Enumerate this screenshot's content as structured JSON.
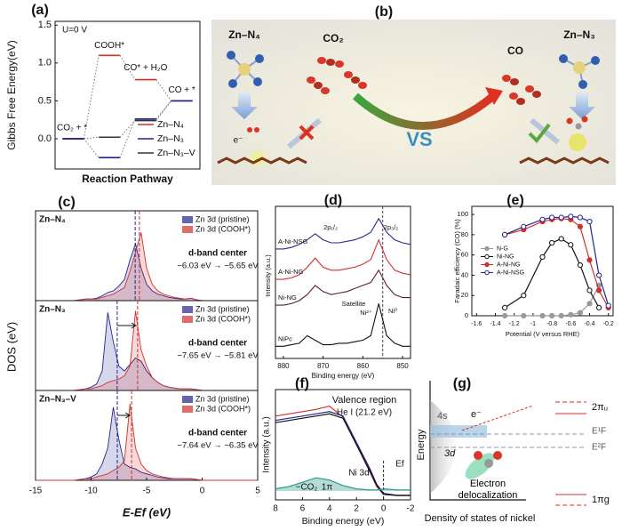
{
  "panel_labels": [
    "(a)",
    "(b)",
    "(c)",
    "(d)",
    "(e)",
    "(f)",
    "(g)"
  ],
  "chart_data": [
    {
      "type": "energy",
      "ylabel": "Gibbs Free Energy(eV)",
      "xlabel": "Reaction Pathway",
      "annotations": [
        "U=0 V",
        "CO₂ + *",
        "COOH*",
        "CO* + H₂O",
        "CO + *"
      ],
      "ylim": [
        -0.4,
        1.55
      ],
      "yticks": [
        {
          "value": 0,
          "label": "0.0"
        },
        0.5,
        {
          "value": 1,
          "label": "1.0"
        },
        1.5
      ],
      "legend": "lower right",
      "series": [
        {
          "name": "Zn–N₄",
          "color": "#d0312d",
          "values": [
            0,
            1.1,
            0.78,
            0.5
          ]
        },
        {
          "name": "Zn–N₃",
          "color": "#23238e",
          "values": [
            0,
            -0.25,
            0.26,
            0.5
          ]
        },
        {
          "name": "Zn–N₃–V",
          "color": "#333333",
          "values": [
            0,
            0.02,
            0.24,
            0.5
          ]
        }
      ]
    },
    {
      "type": "dos",
      "xlabel": "E-Ef (eV)",
      "ylabel": "DOS (eV)",
      "x": [
        -15,
        -14.5,
        -14,
        -13.5,
        -13,
        -12.5,
        -12,
        -11.5,
        -11,
        -10.5,
        -10,
        -9.5,
        -9,
        -8.5,
        -8,
        -7.5,
        -7,
        -6.5,
        -6,
        -5.5,
        -5,
        -4.5,
        -4,
        -3.5,
        -3,
        -2.5,
        -2,
        -1.5,
        -1,
        -0.5,
        0,
        0.5,
        1,
        1.5,
        2,
        2.5,
        3,
        3.5,
        4,
        4.5,
        5
      ],
      "xlim": [
        -15,
        5
      ],
      "xticks": [
        -15,
        -10,
        -5,
        0,
        5
      ],
      "ylim": [
        0,
        5.2
      ],
      "panels": [
        {
          "label": "Zn–N₄",
          "annotation_title": "d-band center",
          "annotation": "−6.03 eV → −5.65 eV",
          "d_band_centers": [
            -6.03,
            -5.65
          ],
          "series": [
            {
              "name": "Zn 3d (pristine)",
              "color": "#23238e",
              "values": [
                0,
                0,
                0,
                0,
                0,
                0,
                0,
                0,
                0.05,
                0.1,
                0.1,
                0.15,
                0.3,
                0.5,
                0.6,
                0.9,
                1.3,
                2.5,
                3.5,
                2.0,
                1.0,
                0.6,
                0.4,
                0.3,
                0.2,
                0.15,
                0.1,
                0.1,
                0.15,
                0.05,
                0,
                0,
                0,
                0,
                0,
                0,
                0,
                0,
                0,
                0,
                0
              ]
            },
            {
              "name": "Zn 3d (COOH*)",
              "color": "#d0312d",
              "values": [
                0,
                0,
                0,
                0,
                0,
                0,
                0,
                0,
                0.05,
                0.1,
                0.1,
                0.1,
                0.2,
                0.3,
                0.4,
                0.6,
                0.8,
                1.8,
                3.0,
                4.2,
                2.0,
                1.0,
                0.6,
                0.4,
                0.3,
                0.2,
                0.15,
                0.1,
                0.15,
                0.05,
                0,
                0,
                0,
                0,
                0,
                0,
                0,
                0,
                0,
                0,
                0
              ]
            }
          ]
        },
        {
          "label": "Zn–N₃",
          "annotation_title": "d-band center",
          "annotation": "−7.65 eV → −5.81 eV",
          "d_band_centers": [
            -7.65,
            -5.81
          ],
          "series": [
            {
              "name": "Zn 3d (pristine)",
              "color": "#23238e",
              "values": [
                0,
                0,
                0,
                0,
                0,
                0,
                0,
                0,
                0.05,
                0.1,
                0.2,
                0.4,
                1.2,
                4.8,
                3.0,
                1.5,
                1.2,
                1.6,
                2.0,
                1.8,
                1.2,
                0.8,
                0.5,
                0.3,
                0.2,
                0.15,
                0.1,
                0.1,
                0.1,
                0.05,
                0,
                0,
                0,
                0,
                0,
                0,
                0,
                0,
                0,
                0,
                0
              ]
            },
            {
              "name": "Zn 3d (COOH*)",
              "color": "#d0312d",
              "values": [
                0,
                0,
                0,
                0,
                0,
                0,
                0,
                0,
                0.05,
                0.1,
                0.1,
                0.2,
                0.3,
                0.5,
                0.6,
                0.7,
                0.9,
                1.5,
                4.9,
                2.5,
                1.5,
                0.8,
                0.5,
                0.3,
                0.2,
                0.15,
                0.1,
                0.1,
                0.1,
                0.05,
                0,
                0,
                0,
                0,
                0,
                0,
                0,
                0,
                0,
                0,
                0
              ]
            }
          ]
        },
        {
          "label": "Zn–N₃–V",
          "annotation_title": "d-band center",
          "annotation": "−7.64 eV → −6.35 eV",
          "d_band_centers": [
            -7.64,
            -6.35
          ],
          "series": [
            {
              "name": "Zn 3d (pristine)",
              "color": "#23238e",
              "values": [
                0,
                0,
                0,
                0,
                0,
                0,
                0,
                0,
                0.05,
                0.1,
                0.2,
                0.4,
                1.0,
                2.0,
                4.5,
                2.5,
                1.0,
                0.8,
                0.7,
                0.5,
                0.4,
                0.3,
                0.2,
                0.15,
                0.1,
                0.1,
                0.1,
                0.1,
                0.1,
                0.05,
                0,
                0,
                0,
                0,
                0,
                0,
                0,
                0,
                0,
                0,
                0
              ]
            },
            {
              "name": "Zn 3d (COOH*)",
              "color": "#d0312d",
              "values": [
                0,
                0,
                0,
                0,
                0,
                0,
                0,
                0,
                0.05,
                0.1,
                0.1,
                0.2,
                0.3,
                0.4,
                0.6,
                0.8,
                1.2,
                4.7,
                2.0,
                1.0,
                0.6,
                0.4,
                0.3,
                0.2,
                0.15,
                0.1,
                0.1,
                0.1,
                0.1,
                0.05,
                0,
                0,
                0,
                0,
                0,
                0,
                0,
                0,
                0,
                0,
                0
              ]
            }
          ]
        }
      ]
    },
    {
      "type": "xps",
      "xlabel": "Binding energy (eV)",
      "ylabel": "Intensity (a.u.)",
      "x": [
        882,
        880,
        878,
        876,
        874,
        872,
        870,
        868,
        866,
        864,
        862,
        860,
        858,
        856,
        854,
        852,
        850,
        848
      ],
      "xlim": [
        882,
        848
      ],
      "xticks": [
        880,
        870,
        860,
        850
      ],
      "ylim": [
        0,
        10
      ],
      "vline": 855,
      "annotations": [
        "2p₁/₂",
        "2p₃/₂",
        "Satellite",
        "Ni²⁺",
        "Ni⁰"
      ],
      "series": [
        {
          "name": "A-Ni-NSG",
          "color": "#2a2a8c",
          "values": [
            7.2,
            7.2,
            7.3,
            7.5,
            7.8,
            8.2,
            7.8,
            7.6,
            7.6,
            7.7,
            7.8,
            8.0,
            8.3,
            9.2,
            8.3,
            7.8,
            7.6,
            7.5
          ]
        },
        {
          "name": "A-Ni-NG",
          "color": "#d0312d",
          "values": [
            5.2,
            5.2,
            5.3,
            5.5,
            6.0,
            6.6,
            6.0,
            5.8,
            5.8,
            5.9,
            6.0,
            6.2,
            6.5,
            7.8,
            6.5,
            5.8,
            5.6,
            5.5
          ]
        },
        {
          "name": "Ni-NG",
          "color": "#5a1a3a",
          "values": [
            3.5,
            3.5,
            3.6,
            3.8,
            4.2,
            4.8,
            4.4,
            4.2,
            4.3,
            4.4,
            4.6,
            4.8,
            5.0,
            5.8,
            4.8,
            4.2,
            4.0,
            4.0
          ]
        },
        {
          "name": "NiPc",
          "color": "#111111",
          "values": [
            0.8,
            0.8,
            0.9,
            1.0,
            1.5,
            1.2,
            0.9,
            0.9,
            1.0,
            1.0,
            1.1,
            1.2,
            1.5,
            3.6,
            1.5,
            1.0,
            0.8,
            0.8
          ]
        }
      ]
    },
    {
      "type": "line",
      "xlabel": "Potential (V versus RHE)",
      "ylabel": "Faradaic efficiency (CO) (%)",
      "x": [
        -1.3,
        -1.1,
        -0.9,
        -0.8,
        -0.7,
        -0.6,
        -0.5,
        -0.4,
        -0.3,
        -0.2
      ],
      "xlim": [
        -1.65,
        -0.15
      ],
      "xticks": [
        -1.6,
        -1.4,
        -1.2,
        -1.0,
        -0.8,
        -0.6,
        -0.4,
        -0.2
      ],
      "ylim": [
        0,
        108
      ],
      "yticks": [
        0,
        20,
        40,
        60,
        80,
        100
      ],
      "legend": "center left",
      "series": [
        {
          "name": "N-G",
          "color": "#999999",
          "values": [
            0,
            0,
            0,
            0,
            0,
            1,
            3,
            12,
            30,
            null
          ]
        },
        {
          "name": "Ni-NG",
          "color": "#111111",
          "values": [
            8,
            20,
            58,
            72,
            76,
            70,
            50,
            25,
            8,
            null
          ]
        },
        {
          "name": "A-Ni-NG",
          "color": "#d0312d",
          "values": [
            80,
            85,
            93,
            95,
            96,
            95,
            88,
            55,
            25,
            8
          ]
        },
        {
          "name": "A-Ni-NSG",
          "color": "#23238e",
          "values": [
            80,
            88,
            95,
            97,
            97,
            98,
            97,
            93,
            40,
            10
          ]
        }
      ]
    },
    {
      "type": "ups",
      "xlabel": "Binding energy (eV)",
      "ylabel": "Intensity (a.u.)",
      "x": [
        8,
        7,
        6,
        5,
        4,
        3,
        2,
        1,
        0.5,
        0,
        -1,
        -2
      ],
      "xlim": [
        8,
        -2
      ],
      "xticks": [
        8,
        6,
        4,
        2,
        0,
        -2
      ],
      "ylim": [
        0,
        10
      ],
      "vline": 0,
      "annotations": [
        "Valence region",
        "He I (21.2 eV)",
        "Ni 3d",
        "Ef",
        "−CO₂",
        "1π"
      ],
      "series": [
        {
          "color": "#d0312d",
          "values": [
            7.6,
            7.8,
            8.0,
            8.2,
            8.5,
            7.5,
            5.0,
            2.5,
            1.2,
            0.5,
            0.4,
            0.4
          ]
        },
        {
          "color": "#23238e",
          "values": [
            7.2,
            7.4,
            7.6,
            7.8,
            8.0,
            7.6,
            5.2,
            2.8,
            1.4,
            0.6,
            0.4,
            0.4
          ]
        },
        {
          "color": "#111111",
          "values": [
            7.0,
            7.2,
            7.4,
            7.6,
            7.8,
            7.4,
            5.0,
            2.6,
            1.3,
            0.5,
            0.4,
            0.4
          ]
        },
        {
          "color": "#2a9a8a",
          "values": [
            1.0,
            1.2,
            1.6,
            2.0,
            1.8,
            1.3,
            1.0,
            0.9,
            0.9,
            1.0,
            0.9,
            0.9
          ]
        }
      ]
    }
  ],
  "diagram_b": {
    "zn_n4": "Zn–N₄",
    "co2": "CO₂",
    "co": "CO",
    "zn_n3": "Zn–N₃",
    "vs": "VS",
    "electron": "e⁻"
  },
  "diagram_g": {
    "ylabel": "Energy",
    "xlabel": "Density of states of nickel",
    "s_band": "4s",
    "d_band": "3d",
    "electron": "e⁻",
    "pi_u": "2πᵤ",
    "ef1": "E¹F",
    "ef2": "E²F",
    "delocalization": "Electron delocalization",
    "pi_g": "1πg"
  }
}
